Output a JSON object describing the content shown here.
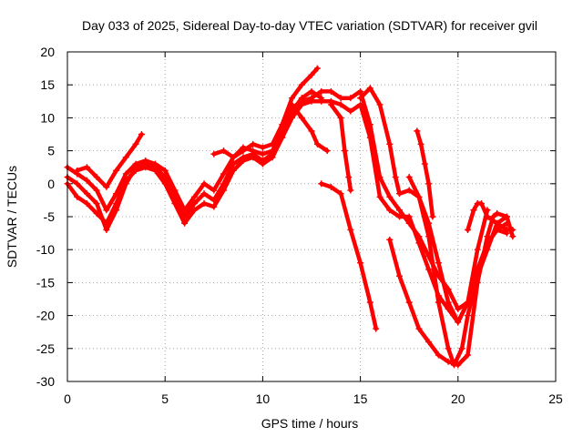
{
  "chart_data": {
    "type": "scatter",
    "title": "Day 033 of 2025, Sidereal Day-to-day VTEC variation (SDTVAR) for receiver gvil",
    "xlabel": "GPS time / hours",
    "ylabel": "SDTVAR / TECUs",
    "xlim": [
      0,
      25
    ],
    "ylim": [
      -30,
      20
    ],
    "xticks": [
      0,
      5,
      10,
      15,
      20,
      25
    ],
    "yticks": [
      -30,
      -25,
      -20,
      -15,
      -10,
      -5,
      0,
      5,
      10,
      15,
      20
    ],
    "xtick_labels": [
      "0",
      "5",
      "10",
      "15",
      "20",
      "25"
    ],
    "ytick_labels": [
      "-30",
      "-25",
      "-20",
      "-15",
      "-10",
      "-5",
      "0",
      "5",
      "10",
      "15",
      "20"
    ],
    "grid": true,
    "marker": "plus",
    "color": "#ff0000",
    "series": [
      {
        "x": [
          0,
          0.5,
          1,
          1.5,
          2,
          2.5,
          3,
          3.5,
          4,
          4.5,
          5,
          5.5,
          6,
          6.5,
          7,
          7.5,
          8,
          8.5,
          9,
          9.5,
          10,
          10.5,
          11,
          11.5,
          12,
          12.5,
          13
        ],
        "y": [
          2.5,
          1.5,
          0.5,
          -1,
          -4,
          -1.5,
          1.5,
          3,
          3.5,
          3,
          2,
          -1,
          -4,
          -2,
          0,
          -1,
          1.5,
          4,
          5.5,
          5,
          4.5,
          5,
          8,
          11,
          13,
          14,
          13
        ]
      },
      {
        "x": [
          0,
          0.5,
          1,
          1.5,
          2,
          2.5,
          3,
          3.5,
          4,
          4.5,
          5,
          5.5,
          6,
          6.5,
          7,
          7.5,
          8,
          8.5,
          9,
          9.5,
          10,
          10.5,
          11,
          11.5,
          12,
          12.5,
          13,
          13.5,
          14,
          14.5,
          15,
          15.5,
          16,
          16.5,
          17,
          17.5,
          18,
          18.5,
          19,
          19.5,
          20,
          20.5,
          21,
          21.5,
          22,
          22.5
        ],
        "y": [
          1,
          0,
          -1.5,
          -3,
          -7,
          -4,
          0,
          2.5,
          3,
          2.5,
          1,
          -2,
          -5,
          -3,
          -1.5,
          -2.5,
          0,
          3,
          4,
          4.5,
          3.5,
          4.5,
          7.5,
          11.5,
          12.5,
          13,
          14,
          14,
          13,
          13,
          14,
          9,
          1,
          -2,
          -4,
          -6,
          -8,
          -11,
          -14,
          -16,
          -19,
          -18,
          -14,
          -9,
          -7,
          -6
        ]
      },
      {
        "x": [
          0,
          0.5,
          1,
          1.5,
          2,
          2.5,
          3,
          3.5,
          4,
          4.5,
          5,
          5.5,
          6,
          6.5,
          7,
          7.5,
          8,
          8.5,
          9,
          9.5,
          10,
          10.5,
          11,
          11.5,
          12,
          12.5,
          13,
          13.5,
          14,
          14.5,
          15,
          15.5,
          16,
          16.5,
          17,
          17.5,
          18,
          18.5,
          19,
          19.5,
          20,
          20.5,
          21,
          21.5,
          22,
          22.5
        ],
        "y": [
          0,
          -2,
          -3,
          -4.5,
          -6,
          -3,
          0.5,
          2,
          2.5,
          2,
          0,
          -3,
          -6,
          -4,
          -3,
          -3.5,
          -1,
          2,
          3.5,
          4,
          3,
          4,
          7,
          10,
          12,
          12.5,
          12.5,
          12.5,
          12,
          11,
          12,
          7,
          -2,
          -4,
          -5,
          -5,
          -9,
          -13,
          -17,
          -19,
          -21,
          -18,
          -13,
          -9,
          -7,
          -7.5
        ]
      },
      {
        "x": [
          0.5,
          1,
          1.5,
          2,
          2.5,
          3,
          3.5,
          3.8
        ],
        "y": [
          2,
          2.5,
          1,
          -0.5,
          2,
          4,
          6,
          7.5
        ]
      },
      {
        "x": [
          7.5,
          8,
          8.5,
          9,
          9.5,
          10,
          10.5,
          11,
          11.5,
          12,
          12.5,
          12.8
        ],
        "y": [
          4.5,
          5,
          4,
          5,
          6,
          5.5,
          6,
          9,
          13,
          15,
          16.5,
          17.5
        ]
      },
      {
        "x": [
          11.5,
          12,
          12.5,
          12.8,
          13.3
        ],
        "y": [
          12,
          10,
          8,
          6,
          5
        ]
      },
      {
        "x": [
          13.5,
          14,
          14.2,
          14.4,
          14.5
        ],
        "y": [
          12,
          10,
          5,
          1,
          -1
        ]
      },
      {
        "x": [
          13,
          13.5,
          14,
          14.5,
          15,
          15.5,
          15.8
        ],
        "y": [
          0,
          -0.5,
          -1.5,
          -7,
          -12,
          -18,
          -22
        ]
      },
      {
        "x": [
          15,
          15.5,
          16,
          16.5,
          16.8,
          17,
          17.5,
          18,
          18.5,
          19,
          19.5,
          19.8,
          20.2,
          20.5,
          21,
          21.5,
          22,
          22.5,
          22.8
        ],
        "y": [
          13,
          14.5,
          12,
          6,
          1,
          -1.5,
          -1,
          -2,
          -8,
          -18,
          -25,
          -27.5,
          -25,
          -20,
          -14,
          -10,
          -6,
          -5,
          -8
        ]
      },
      {
        "x": [
          16.5,
          17,
          17.5,
          18,
          18.5,
          19,
          19.5,
          20,
          20.5,
          21,
          21.5,
          21.8,
          22,
          22.5
        ],
        "y": [
          -8.5,
          -14,
          -18,
          -22,
          -24,
          -26,
          -27,
          -27.5,
          -26,
          -15,
          -8,
          -5,
          -4.5,
          -5
        ]
      },
      {
        "x": [
          17.5,
          18,
          18.5,
          19,
          19.5,
          20,
          20.5,
          21,
          21.5
        ],
        "y": [
          1,
          -2,
          -6,
          -12,
          -18,
          -21,
          -18,
          -10,
          -4
        ]
      },
      {
        "x": [
          17.9,
          18.1,
          18.3,
          18.5,
          18.7
        ],
        "y": [
          8,
          6,
          3,
          0,
          -5
        ]
      },
      {
        "x": [
          20.5,
          20.8,
          21,
          21.2,
          21.5,
          22,
          22.5,
          22.8
        ],
        "y": [
          -7,
          -4,
          -3,
          -3,
          -5,
          -6,
          -7,
          -7
        ]
      }
    ]
  }
}
